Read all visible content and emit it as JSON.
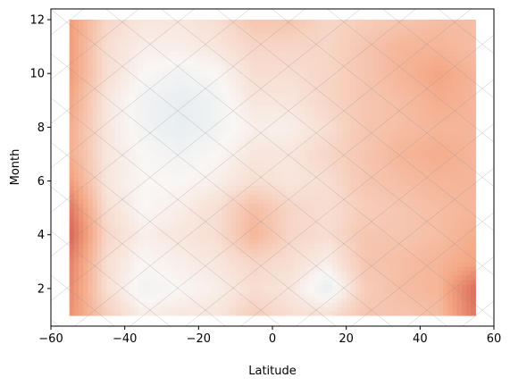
{
  "chart_data": {
    "type": "heatmap",
    "title": "",
    "xlabel": "Latitude",
    "ylabel": "Month",
    "xlim": [
      -60,
      60
    ],
    "ylim": [
      0.6,
      12.4
    ],
    "x_ticks": [
      -60,
      -40,
      -20,
      0,
      20,
      40,
      60
    ],
    "y_ticks": [
      2,
      4,
      6,
      8,
      10,
      12
    ],
    "colormap": "RdBu_r (diverging, white at 0)",
    "grid": false,
    "overlay": "diagonal hatch lines",
    "x": [
      -55,
      -45,
      -35,
      -25,
      -15,
      -5,
      5,
      15,
      25,
      35,
      45,
      55
    ],
    "y": [
      1,
      2,
      3,
      4,
      5,
      6,
      7,
      8,
      9,
      10,
      11,
      12
    ],
    "z": [
      [
        0.6,
        0.25,
        0.05,
        0.1,
        0.1,
        0.25,
        0.15,
        0.15,
        0.3,
        0.3,
        0.35,
        0.75
      ],
      [
        0.65,
        0.15,
        -0.05,
        0.0,
        0.05,
        0.15,
        0.1,
        -0.1,
        0.25,
        0.35,
        0.4,
        0.8
      ],
      [
        0.7,
        0.15,
        0.0,
        0.05,
        0.1,
        0.2,
        0.15,
        0.05,
        0.3,
        0.35,
        0.4,
        0.5
      ],
      [
        0.85,
        0.2,
        0.05,
        0.1,
        0.15,
        0.4,
        0.2,
        0.15,
        0.3,
        0.3,
        0.35,
        0.45
      ],
      [
        0.75,
        0.15,
        0.0,
        0.05,
        0.15,
        0.35,
        0.2,
        0.15,
        0.25,
        0.3,
        0.35,
        0.4
      ],
      [
        0.55,
        0.1,
        0.0,
        0.0,
        0.05,
        0.15,
        0.1,
        0.15,
        0.3,
        0.35,
        0.4,
        0.4
      ],
      [
        0.45,
        0.1,
        0.0,
        -0.05,
        0.0,
        0.1,
        0.1,
        0.2,
        0.3,
        0.4,
        0.45,
        0.4
      ],
      [
        0.45,
        0.1,
        -0.05,
        -0.1,
        -0.05,
        0.05,
        0.05,
        0.15,
        0.3,
        0.35,
        0.4,
        0.4
      ],
      [
        0.5,
        0.1,
        -0.05,
        -0.1,
        -0.05,
        0.1,
        0.1,
        0.2,
        0.3,
        0.35,
        0.45,
        0.4
      ],
      [
        0.55,
        0.15,
        0.0,
        -0.05,
        0.0,
        0.15,
        0.15,
        0.2,
        0.3,
        0.4,
        0.5,
        0.4
      ],
      [
        0.55,
        0.15,
        0.05,
        0.05,
        0.1,
        0.2,
        0.2,
        0.2,
        0.3,
        0.4,
        0.4,
        0.35
      ],
      [
        0.55,
        0.2,
        0.1,
        0.1,
        0.15,
        0.3,
        0.3,
        0.2,
        0.25,
        0.3,
        0.35,
        0.35
      ]
    ]
  }
}
